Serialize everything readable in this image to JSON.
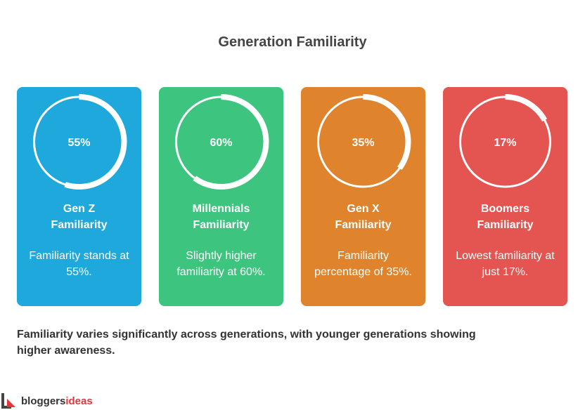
{
  "chart_data": {
    "type": "progress-ring",
    "title": "Generation Familiarity",
    "categories": [
      "Gen Z Familiarity",
      "Millennials Familiarity",
      "Gen X Familiarity",
      "Boomers Familiarity"
    ],
    "values": [
      55,
      60,
      35,
      17
    ],
    "value_labels": [
      "55%",
      "60%",
      "35%",
      "17%"
    ],
    "descriptions": [
      "Familiarity stands at 55%.",
      "Slightly higher familiarity at 60%.",
      "Familiarity percentage of 35%.",
      "Lowest familiarity at just 17%."
    ],
    "colors": [
      "#1fa8dc",
      "#3dc47f",
      "#df832d",
      "#e45451"
    ],
    "ylim": [
      0,
      100
    ],
    "caption": "Familiarity varies significantly across generations, with younger generations showing higher awareness."
  },
  "brand": {
    "name": [
      "bloggers",
      "ideas"
    ]
  }
}
